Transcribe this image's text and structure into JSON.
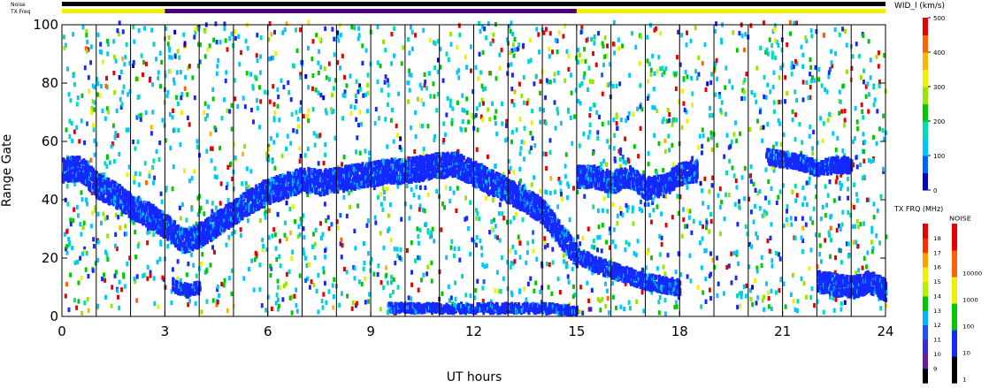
{
  "header": {
    "noise_label": "Noise",
    "txfreq_label": "TX Freq"
  },
  "chart_data": {
    "type": "scatter",
    "xlabel": "UT hours",
    "ylabel": "Range Gate",
    "xlim": [
      0,
      24
    ],
    "ylim": [
      0,
      100
    ],
    "x_ticks": [
      0,
      3,
      6,
      9,
      12,
      15,
      18,
      21,
      24
    ],
    "y_ticks": [
      0,
      20,
      40,
      60,
      80,
      100
    ],
    "scan_boundaries_ut": [
      1,
      2,
      3,
      4,
      5,
      6,
      7,
      8,
      9,
      10,
      11,
      12,
      13,
      14,
      15,
      16,
      17,
      18,
      19,
      20,
      21,
      22,
      23
    ],
    "status_bars": {
      "noise": [
        {
          "from": 0,
          "to": 24,
          "color": "#000000"
        }
      ],
      "tx_freq": [
        {
          "from": 0,
          "to": 3,
          "color": "#f0f000"
        },
        {
          "from": 3,
          "to": 15,
          "color": "#4b0082"
        },
        {
          "from": 15,
          "to": 24,
          "color": "#f0f000"
        }
      ]
    },
    "dense_bands": [
      {
        "name": "main echo band",
        "color": "#1428ff",
        "points": [
          [
            0,
            49
          ],
          [
            0.5,
            50
          ],
          [
            1,
            44
          ],
          [
            1.5,
            41
          ],
          [
            2,
            37
          ],
          [
            2.5,
            34
          ],
          [
            3,
            30
          ],
          [
            3.5,
            25
          ],
          [
            4,
            27
          ],
          [
            4.5,
            31
          ],
          [
            5,
            35
          ],
          [
            5.5,
            39
          ],
          [
            6,
            42
          ],
          [
            6.5,
            44
          ],
          [
            7,
            46
          ],
          [
            7.5,
            45
          ],
          [
            8,
            46
          ],
          [
            8.5,
            47
          ],
          [
            9,
            48
          ],
          [
            9.5,
            49
          ],
          [
            10,
            49
          ],
          [
            10.5,
            50
          ],
          [
            11,
            51
          ],
          [
            11.5,
            51
          ],
          [
            12,
            48
          ],
          [
            12.5,
            45
          ],
          [
            13,
            42
          ],
          [
            13.5,
            39
          ],
          [
            14,
            35
          ],
          [
            14.5,
            27
          ],
          [
            15,
            20
          ]
        ],
        "halfwidth": 4
      },
      {
        "name": "near-range band",
        "color": "#1428ff",
        "points": [
          [
            15,
            20
          ],
          [
            15.5,
            17
          ],
          [
            16,
            15
          ],
          [
            16.5,
            13
          ],
          [
            17,
            11
          ],
          [
            17.5,
            10
          ],
          [
            18,
            9
          ]
        ],
        "halfwidth": 2.5
      },
      {
        "name": "late echo band",
        "color": "#1428ff",
        "points": [
          [
            15,
            47
          ],
          [
            15.5,
            47
          ],
          [
            16,
            45
          ],
          [
            16.5,
            47
          ],
          [
            17,
            43
          ],
          [
            17.5,
            44
          ],
          [
            18,
            48
          ],
          [
            18.5,
            49
          ]
        ],
        "halfwidth": 3.5
      },
      {
        "name": "late upper band",
        "color": "#1428ff",
        "points": [
          [
            20.5,
            54
          ],
          [
            21,
            53
          ],
          [
            21.5,
            52
          ],
          [
            22,
            50
          ],
          [
            22.5,
            51
          ],
          [
            23,
            51
          ]
        ],
        "halfwidth": 2.5
      },
      {
        "name": "late near band",
        "color": "#1428ff",
        "points": [
          [
            22,
            11
          ],
          [
            22.5,
            10
          ],
          [
            23,
            9
          ],
          [
            23.5,
            11
          ],
          [
            24,
            8
          ]
        ],
        "halfwidth": 3.5
      },
      {
        "name": "blob",
        "color": "#1428ff",
        "points": [
          [
            3.2,
            10
          ],
          [
            3.6,
            8
          ],
          [
            4,
            9
          ]
        ],
        "halfwidth": 2
      },
      {
        "name": "ground scatter",
        "color": "#1428ff",
        "points": [
          [
            9.5,
            2
          ],
          [
            11,
            2
          ],
          [
            12.5,
            2
          ],
          [
            14,
            2
          ],
          [
            15,
            1
          ]
        ],
        "halfwidth": 1.5
      }
    ],
    "colorbars": [
      {
        "title": "WID_l (km/s)",
        "type": "continuous",
        "range": [
          0,
          500
        ],
        "tick_labels": [
          "0",
          "100",
          "200",
          "300",
          "400",
          "500"
        ],
        "colors": [
          "#0000cc",
          "#0064ff",
          "#00c8ff",
          "#00dcb4",
          "#00c800",
          "#96e600",
          "#f0f000",
          "#ffb400",
          "#ff6400",
          "#e60000"
        ]
      },
      {
        "title": "TX FRQ (MHz)",
        "type": "discrete",
        "tick_labels": [
          "9",
          "10",
          "11",
          "12",
          "13",
          "14",
          "15",
          "16",
          "17",
          "18"
        ],
        "colors": [
          "#000000",
          "#6a1b9a",
          "#3a2ad9",
          "#2050ff",
          "#00b4ff",
          "#00c800",
          "#b4f000",
          "#f0f000",
          "#ffa000",
          "#ff3000",
          "#e60000"
        ]
      },
      {
        "title": "NOISE",
        "type": "discrete",
        "tick_labels": [
          "1",
          "10",
          "100",
          "1000",
          "10000"
        ],
        "colors": [
          "#000000",
          "#1428ff",
          "#00c800",
          "#f0f000",
          "#ff6000",
          "#e60000"
        ]
      }
    ]
  }
}
